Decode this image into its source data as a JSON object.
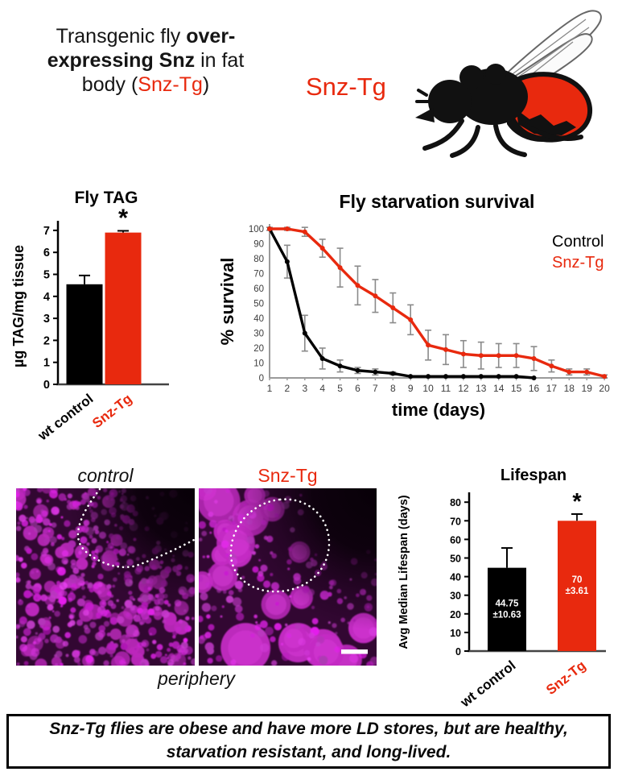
{
  "header": {
    "lines": [
      [
        {
          "t": "Transgenic fly ",
          "b": false,
          "r": false
        },
        {
          "t": "over-",
          "b": true,
          "r": false
        }
      ],
      [
        {
          "t": "expressing Snz",
          "b": true,
          "r": false
        },
        {
          "t": " in fat",
          "b": false,
          "r": false
        }
      ],
      [
        {
          "t": "body (",
          "b": false,
          "r": false
        },
        {
          "t": "Snz-Tg",
          "b": false,
          "r": true
        },
        {
          "t": ")",
          "b": false,
          "r": false
        }
      ]
    ]
  },
  "fly": {
    "label": "Snz-Tg"
  },
  "colors": {
    "red": "#e8290e",
    "magenta": "#cf2bcf",
    "axis_grey": "#9a9a9a",
    "error_grey": "#8a8a8a"
  },
  "chart_data": [
    {
      "type": "bar",
      "title": "Fly TAG",
      "ylabel": "µg TAG/mg tissue",
      "ylim": [
        0,
        7
      ],
      "ytick_step": 1,
      "categories": [
        "wt control",
        "Snz-Tg"
      ],
      "values": [
        4.55,
        6.9
      ],
      "errors": [
        0.4,
        0.08
      ],
      "colors": [
        "#000000",
        "#e8290e"
      ],
      "sig": [
        "",
        "*"
      ],
      "bar_labels": [
        [],
        []
      ]
    },
    {
      "type": "line",
      "title": "Fly starvation survival",
      "xlabel": "time (days)",
      "ylabel": "% survival",
      "x": [
        1,
        2,
        3,
        4,
        5,
        6,
        7,
        8,
        9,
        10,
        11,
        12,
        13,
        14,
        15,
        16,
        17,
        18,
        19,
        20
      ],
      "ylim": [
        0,
        100
      ],
      "ytick_step": 10,
      "legend_position": "right",
      "series": [
        {
          "name": "Control",
          "color": "#000000",
          "values": [
            100,
            78,
            30,
            13,
            8,
            5,
            4,
            3,
            1,
            1,
            1,
            1,
            1,
            1,
            1,
            0
          ],
          "errors": [
            0,
            11,
            12,
            7,
            4,
            2,
            2,
            1,
            0,
            0,
            0,
            0,
            0,
            0,
            0,
            0
          ]
        },
        {
          "name": "Snz-Tg",
          "color": "#e8290e",
          "values": [
            100,
            100,
            98,
            87,
            74,
            62,
            55,
            47,
            39,
            22,
            19,
            16,
            15,
            15,
            15,
            13,
            8,
            4,
            4,
            1
          ],
          "errors": [
            1,
            1,
            3,
            6,
            13,
            13,
            11,
            10,
            10,
            10,
            10,
            9,
            9,
            8,
            8,
            8,
            4,
            2,
            2,
            1
          ]
        }
      ]
    },
    {
      "type": "bar",
      "title": "Lifespan",
      "ylabel": "Avg Median Lifespan (days)",
      "ylim": [
        0,
        80
      ],
      "ytick_step": 10,
      "categories": [
        "wt control",
        "Snz-Tg"
      ],
      "values": [
        44.75,
        70
      ],
      "errors": [
        10.63,
        3.61
      ],
      "colors": [
        "#000000",
        "#e8290e"
      ],
      "sig": [
        "",
        "*"
      ],
      "bar_labels": [
        [
          "44.75",
          "±10.63"
        ],
        [
          "70",
          "±3.61"
        ]
      ]
    }
  ],
  "microscopy": {
    "left_label": "control",
    "right_label": "Snz-Tg",
    "caption": "periphery"
  },
  "banner": {
    "lines": [
      "Snz-Tg flies are obese and have more LD stores, but are healthy,",
      "starvation resistant, and long-lived."
    ]
  }
}
